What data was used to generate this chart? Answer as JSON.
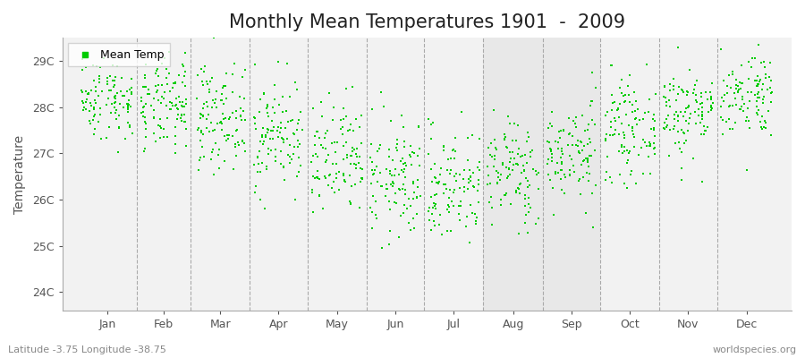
{
  "title": "Monthly Mean Temperatures 1901  -  2009",
  "ylabel": "Temperature",
  "xlabel_months": [
    "Jan",
    "Feb",
    "Mar",
    "Apr",
    "May",
    "Jun",
    "Jul",
    "Aug",
    "Sep",
    "Oct",
    "Nov",
    "Dec"
  ],
  "ytick_labels": [
    "24C",
    "25C",
    "26C",
    "27C",
    "28C",
    "29C"
  ],
  "ytick_values": [
    24,
    25,
    26,
    27,
    28,
    29
  ],
  "ylim": [
    23.6,
    29.5
  ],
  "xlim": [
    -8,
    373
  ],
  "dot_color": "#00cc00",
  "dot_size": 3,
  "background_color": "#ffffff",
  "plot_bg_color": "#f2f2f2",
  "title_fontsize": 15,
  "subtitle": "Latitude -3.75 Longitude -38.75",
  "watermark": "worldspecies.org",
  "legend_label": "Mean Temp",
  "years": 109,
  "seed": 42,
  "monthly_means": [
    28.2,
    28.0,
    27.8,
    27.4,
    26.8,
    26.4,
    26.3,
    26.6,
    27.0,
    27.5,
    27.9,
    28.3
  ],
  "monthly_stds": [
    0.45,
    0.5,
    0.55,
    0.6,
    0.65,
    0.65,
    0.62,
    0.58,
    0.55,
    0.52,
    0.5,
    0.48
  ],
  "days_in_month": [
    31,
    28,
    31,
    30,
    31,
    30,
    31,
    31,
    30,
    31,
    30,
    31
  ],
  "highlight_months": [
    7,
    8
  ],
  "highlight_color": "#e8e8e8"
}
